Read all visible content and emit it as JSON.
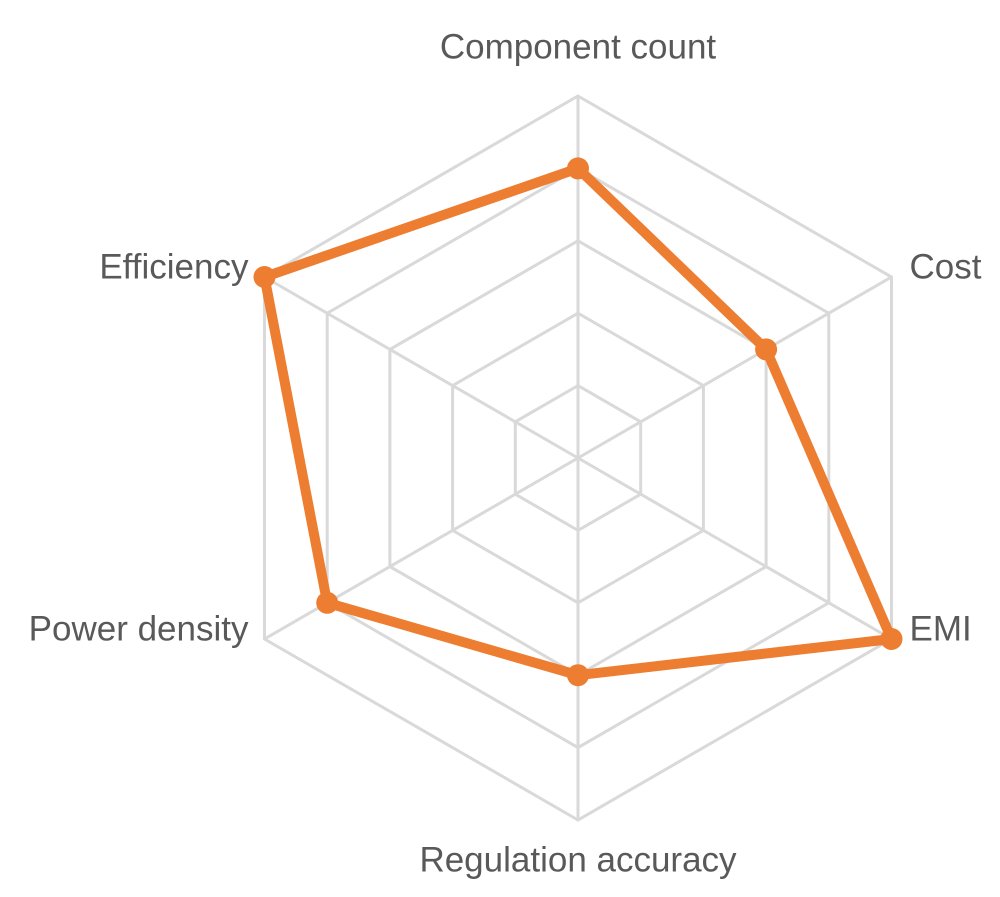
{
  "chart_data": {
    "type": "radar",
    "categories": [
      "Component count",
      "Cost",
      "EMI",
      "Regulation accuracy",
      "Power density",
      "Efficiency"
    ],
    "values": [
      4,
      3,
      5,
      3,
      4,
      5
    ],
    "color": "#ED7D31",
    "ylim": [
      0,
      5
    ],
    "yticks": [
      0,
      1,
      2,
      3,
      4,
      5
    ],
    "grid": true
  }
}
